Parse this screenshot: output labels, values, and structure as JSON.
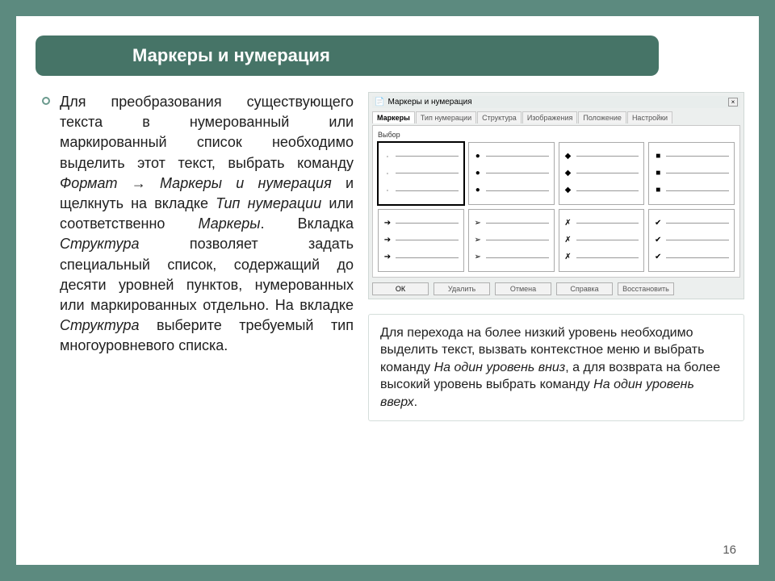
{
  "slide": {
    "title": "Маркеры и нумерация",
    "page_number": "16"
  },
  "body_parts": [
    {
      "t": "Для преобразования существующего текста в нумерованный или маркированный список необходимо выделить этот текст, выбрать команду "
    },
    {
      "t": "Формат → Маркеры и нумерация",
      "it": true
    },
    {
      "t": " и щелкнуть на вкладке "
    },
    {
      "t": "Тип нумерации",
      "it": true
    },
    {
      "t": " или соответственно "
    },
    {
      "t": "Маркеры",
      "it": true
    },
    {
      "t": ". Вкладка "
    },
    {
      "t": "Структура",
      "it": true
    },
    {
      "t": " позволяет задать специальный список, содержащий до десяти уровней пунктов, нумерованных или маркированных отдельно. На вкладке "
    },
    {
      "t": "Структура",
      "it": true
    },
    {
      "t": " выберите требуемый тип многоуровневого списка."
    }
  ],
  "dialog": {
    "title": "Маркеры и нумерация",
    "close": "×",
    "tabs": [
      "Маркеры",
      "Тип нумерации",
      "Структура",
      "Изображения",
      "Положение",
      "Настройки"
    ],
    "active_tab": 0,
    "section_label": "Выбор",
    "cells": [
      {
        "marker": "•",
        "none": true,
        "selected": true
      },
      {
        "marker": "●"
      },
      {
        "marker": "◆"
      },
      {
        "marker": "■"
      },
      {
        "marker": "➔"
      },
      {
        "marker": "➢"
      },
      {
        "marker": "✗"
      },
      {
        "marker": "✔"
      }
    ],
    "buttons": [
      {
        "label": "ОК",
        "primary": true
      },
      {
        "label": "Удалить"
      },
      {
        "label": "Отмена"
      },
      {
        "label": "Справка"
      },
      {
        "label": "Восстановить"
      }
    ]
  },
  "info_parts": [
    {
      "t": "Для перехода на более низкий уровень необходимо выделить текст, вызвать контекстное меню и выбрать команду "
    },
    {
      "t": "На один уровень вниз",
      "it": true
    },
    {
      "t": ", а для возврата на более высокий уровень выбрать команду "
    },
    {
      "t": "На один уровень вверх",
      "it": true
    },
    {
      "t": "."
    }
  ],
  "colors": {
    "page_bg": "#5c8a7f",
    "title_bg": "#467467",
    "ring": "#6b9a8e"
  }
}
